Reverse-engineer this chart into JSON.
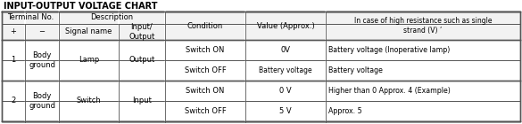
{
  "title": "INPUT-OUTPUT VOLTAGE CHART",
  "bg_header": "#f2f2f2",
  "bg_white": "#ffffff",
  "border_color": "#555555",
  "text_color": "#000000",
  "font_size": 6.0,
  "title_font_size": 7.0,
  "col_proportions": [
    0.045,
    0.065,
    0.115,
    0.09,
    0.155,
    0.155,
    0.375
  ],
  "row1_data": {
    "terminal": "1",
    "minus": "Body\nground",
    "signal": "Lamp",
    "io": "Output",
    "cond_a": "Switch ON",
    "val_a": "0V",
    "hires_a": "Battery voltage (Inoperative lamp)",
    "cond_b": "Switch OFF",
    "val_b": "Battery voltage",
    "hires_b": "Battery voltage"
  },
  "row2_data": {
    "terminal": "2",
    "minus": "Body\nground",
    "signal": "Switch",
    "io": "Input",
    "cond_a": "Switch ON",
    "val_a": "0 V",
    "hires_a": "Higher than 0 Approx. 4 (Example)",
    "cond_b": "Switch OFF",
    "val_b": "5 V",
    "hires_b": "Approx. 5"
  }
}
